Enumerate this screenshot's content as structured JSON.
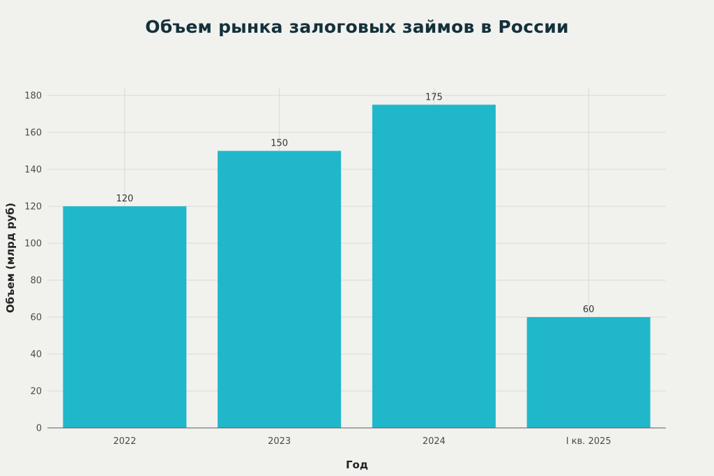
{
  "chart_data": {
    "type": "bar",
    "title": "Объем рынка залоговых займов в России",
    "xlabel": "Год",
    "ylabel": "Объем (млрд руб)",
    "categories": [
      "2022",
      "2023",
      "2024",
      "I кв. 2025"
    ],
    "values": [
      120,
      150,
      175,
      60
    ],
    "ylim": [
      0,
      180
    ],
    "yticks": [
      0,
      20,
      40,
      60,
      80,
      100,
      120,
      140,
      160,
      180
    ],
    "grid": true,
    "legend": "none",
    "bar_color": "#21b7ca"
  }
}
